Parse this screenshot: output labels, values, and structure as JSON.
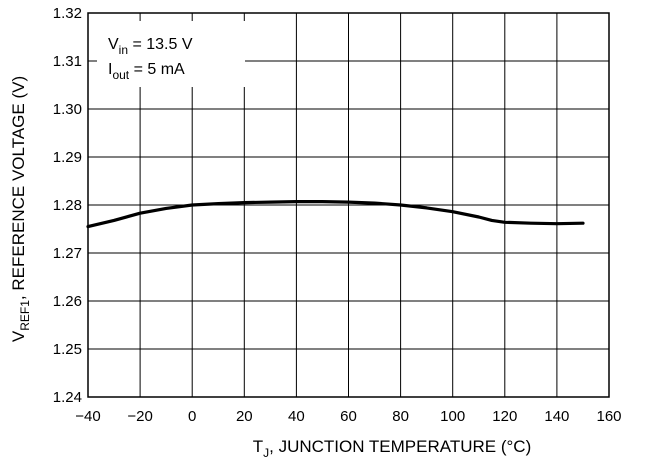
{
  "chart_data": {
    "type": "line",
    "xlabel": {
      "prefix": "T",
      "sub": "J",
      "rest": ", JUNCTION TEMPERATURE (°C)"
    },
    "ylabel": {
      "prefix": "V",
      "sub": "REF1",
      "rest": ", REFERENCE VOLTAGE (V)"
    },
    "xlim": [
      -40,
      160
    ],
    "ylim": [
      1.24,
      1.32
    ],
    "xticks": [
      -40,
      -20,
      0,
      20,
      40,
      60,
      80,
      100,
      120,
      140,
      160
    ],
    "yticks": [
      1.24,
      1.25,
      1.26,
      1.27,
      1.28,
      1.29,
      1.3,
      1.31,
      1.32
    ],
    "xtick_labels": [
      "−40",
      "−20",
      "0",
      "20",
      "40",
      "60",
      "80",
      "100",
      "120",
      "140",
      "160"
    ],
    "ytick_labels": [
      "1.24",
      "1.25",
      "1.26",
      "1.27",
      "1.28",
      "1.29",
      "1.30",
      "1.31",
      "1.32"
    ],
    "grid": true,
    "annotations": [
      {
        "prefix": "V",
        "sub": "in",
        "rest": " = 13.5 V"
      },
      {
        "prefix": "I",
        "sub": "out",
        "rest": " = 5 mA"
      }
    ],
    "series": [
      {
        "x": [
          -40,
          -30,
          -20,
          -10,
          0,
          10,
          20,
          30,
          40,
          50,
          60,
          70,
          80,
          90,
          100,
          110,
          115,
          120,
          130,
          140,
          150
        ],
        "y": [
          1.2755,
          1.2768,
          1.2783,
          1.2793,
          1.28,
          1.2803,
          1.2805,
          1.2806,
          1.2807,
          1.2807,
          1.2806,
          1.2804,
          1.28,
          1.2794,
          1.2786,
          1.2775,
          1.2768,
          1.2764,
          1.2762,
          1.2761,
          1.2762
        ]
      }
    ]
  }
}
